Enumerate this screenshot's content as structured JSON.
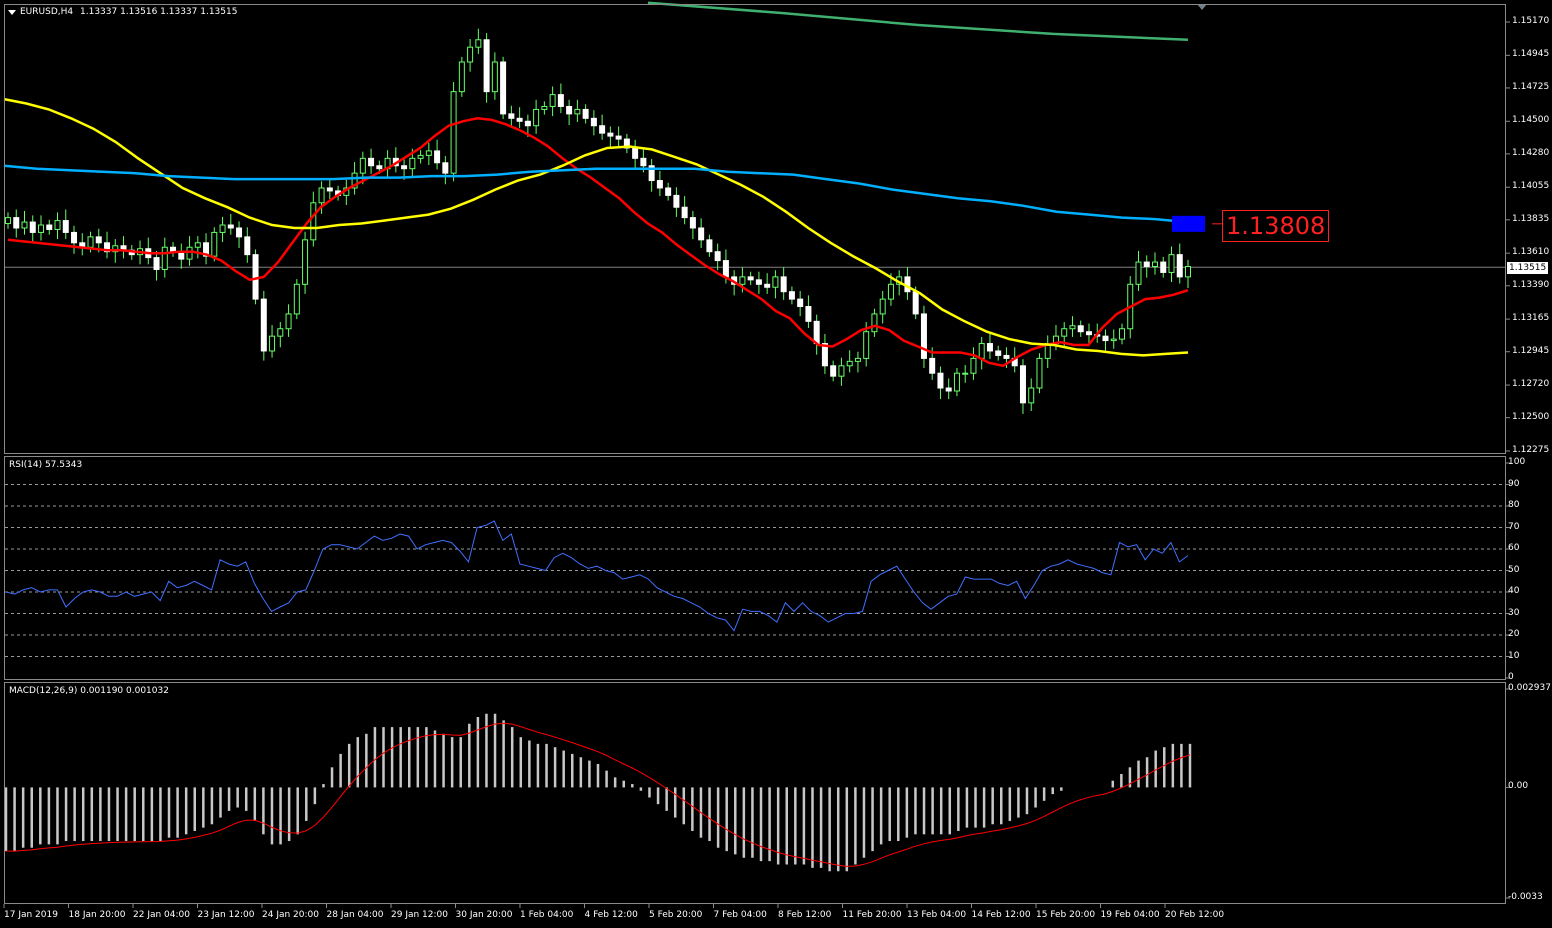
{
  "main": {
    "header_symbol": "EURUSD,H4",
    "header_values": "1.13337 1.13516 1.13337 1.13515",
    "price_ticks": [
      "1.15170",
      "1.14945",
      "1.14725",
      "1.14500",
      "1.14280",
      "1.14055",
      "1.13835",
      "1.13610",
      "1.13390",
      "1.13165",
      "1.12945",
      "1.12720",
      "1.12500",
      "1.12275"
    ],
    "current_price": "1.13515",
    "marker_price": "1.13808",
    "colors": {
      "bull": "#66ff66",
      "bear": "#ffffff",
      "ma_fast": "#ff0000",
      "ma_mid": "#ffff00",
      "ma_slow": "#00b0ff",
      "ma_long": "#40b070",
      "marker": "#0000ff",
      "tag": "#ff2020"
    }
  },
  "rsi": {
    "label": "RSI(14) 57.5343",
    "ticks": [
      "100",
      "90",
      "80",
      "70",
      "60",
      "50",
      "40",
      "30",
      "20",
      "10",
      "0"
    ],
    "line_color": "#4070ff",
    "values": [
      40,
      39,
      41,
      42,
      40,
      41,
      41,
      33,
      37,
      40,
      41,
      40,
      38,
      38,
      40,
      38,
      39,
      40,
      36,
      45,
      42,
      43,
      45,
      43,
      41,
      55,
      53,
      52,
      54,
      44,
      37,
      31,
      33,
      35,
      40,
      41,
      50,
      60,
      62,
      62,
      61,
      60,
      63,
      66,
      64,
      65,
      67,
      66,
      60,
      62,
      63,
      64,
      63,
      59,
      54,
      70,
      71,
      73,
      64,
      67,
      53,
      52,
      51,
      50,
      56,
      58,
      56,
      53,
      51,
      52,
      50,
      49,
      46,
      47,
      48,
      46,
      42,
      40,
      38,
      37,
      35,
      33,
      30,
      28,
      27,
      22,
      32,
      31,
      31,
      29,
      26,
      35,
      31,
      35,
      31,
      29,
      26,
      28,
      30,
      30,
      31,
      45,
      48,
      50,
      52,
      46,
      40,
      35,
      32,
      35,
      38,
      39,
      47,
      46,
      46,
      46,
      44,
      43,
      45,
      37,
      43,
      50,
      52,
      53,
      55,
      53,
      52,
      51,
      49,
      48,
      63,
      61,
      62,
      55,
      60,
      58,
      63,
      54,
      57
    ]
  },
  "macd": {
    "label": "MACD(12,26,9) 0.001190 0.001032",
    "ticks": [
      "0.002937",
      "0.00",
      "-0.0033"
    ],
    "hist_color": "#c8c8c8",
    "signal_color": "#ff0000",
    "histogram": [
      -0.0019,
      -0.0019,
      -0.0018,
      -0.0018,
      -0.0017,
      -0.0017,
      -0.0017,
      -0.0016,
      -0.0016,
      -0.0016,
      -0.0016,
      -0.0016,
      -0.0016,
      -0.0016,
      -0.0016,
      -0.0016,
      -0.0016,
      -0.0016,
      -0.0016,
      -0.0015,
      -0.0015,
      -0.0014,
      -0.0013,
      -0.0012,
      -0.0011,
      -0.0009,
      -0.0007,
      -0.0006,
      -0.0007,
      -0.001,
      -0.0014,
      -0.0017,
      -0.0017,
      -0.0016,
      -0.0014,
      -0.001,
      -0.0005,
      0.0001,
      0.0006,
      0.001,
      0.0013,
      0.0015,
      0.0016,
      0.0018,
      0.0018,
      0.0018,
      0.0018,
      0.0018,
      0.0018,
      0.0018,
      0.0017,
      0.0016,
      0.0015,
      0.0015,
      0.0019,
      0.0021,
      0.0022,
      0.0022,
      0.002,
      0.0018,
      0.0015,
      0.0014,
      0.0013,
      0.0013,
      0.0012,
      0.0011,
      0.001,
      0.0009,
      0.0008,
      0.0007,
      0.0005,
      0.0003,
      0.0002,
      0.0001,
      -0.0001,
      -0.0003,
      -0.0005,
      -0.0007,
      -0.0009,
      -0.0011,
      -0.0013,
      -0.0015,
      -0.0016,
      -0.0018,
      -0.0019,
      -0.002,
      -0.0021,
      -0.0021,
      -0.0022,
      -0.0022,
      -0.0023,
      -0.0023,
      -0.0023,
      -0.0023,
      -0.0024,
      -0.0024,
      -0.0025,
      -0.0025,
      -0.0025,
      -0.0023,
      -0.0021,
      -0.0019,
      -0.0017,
      -0.0016,
      -0.0016,
      -0.0015,
      -0.0014,
      -0.0014,
      -0.0014,
      -0.0014,
      -0.0014,
      -0.0013,
      -0.0012,
      -0.0012,
      -0.0012,
      -0.0011,
      -0.0011,
      -0.001,
      -0.0009,
      -0.0008,
      -0.0006,
      -0.0004,
      -0.0002,
      -0.0001,
      0.0,
      0.0,
      0.0,
      0.0,
      0.0,
      0.0002,
      0.0004,
      0.0006,
      0.0008,
      0.0009,
      0.0011,
      0.0012,
      0.0013,
      0.0013,
      0.0013
    ]
  },
  "time_labels": [
    "17 Jan 2019",
    "18 Jan 20:00",
    "22 Jan 04:00",
    "23 Jan 12:00",
    "24 Jan 20:00",
    "28 Jan 04:00",
    "29 Jan 12:00",
    "30 Jan 20:00",
    "1 Feb 04:00",
    "4 Feb 12:00",
    "5 Feb 20:00",
    "7 Feb 04:00",
    "8 Feb 12:00",
    "11 Feb 20:00",
    "13 Feb 04:00",
    "14 Feb 12:00",
    "15 Feb 20:00",
    "19 Feb 04:00",
    "20 Feb 12:00"
  ],
  "chart_data": {
    "type": "candlestick",
    "title": "EURUSD,H4",
    "symbol": "EURUSD",
    "timeframe": "H4",
    "ylim": [
      1.12275,
      1.1517
    ],
    "last_ohlc": {
      "open": 1.13337,
      "high": 1.13516,
      "low": 1.13337,
      "close": 1.13515
    },
    "close": [
      1.1385,
      1.1378,
      1.1382,
      1.1375,
      1.138,
      1.1377,
      1.1383,
      1.1375,
      1.1368,
      1.1365,
      1.1372,
      1.1368,
      1.1362,
      1.1366,
      1.1363,
      1.136,
      1.1364,
      1.1358,
      1.135,
      1.1365,
      1.1362,
      1.1357,
      1.1365,
      1.1368,
      1.1359,
      1.1375,
      1.138,
      1.1378,
      1.1372,
      1.136,
      1.133,
      1.1295,
      1.1305,
      1.131,
      1.132,
      1.134,
      1.137,
      1.1395,
      1.1405,
      1.1403,
      1.14,
      1.1405,
      1.1415,
      1.1425,
      1.142,
      1.1418,
      1.1425,
      1.142,
      1.1418,
      1.1425,
      1.1427,
      1.143,
      1.1422,
      1.1415,
      1.147,
      1.149,
      1.15,
      1.1505,
      1.147,
      1.149,
      1.1455,
      1.1452,
      1.145,
      1.1447,
      1.1458,
      1.146,
      1.1468,
      1.146,
      1.1455,
      1.1458,
      1.1452,
      1.1447,
      1.1442,
      1.144,
      1.1438,
      1.1432,
      1.1425,
      1.142,
      1.141,
      1.1405,
      1.14,
      1.1392,
      1.1385,
      1.1378,
      1.137,
      1.1362,
      1.1356,
      1.1345,
      1.134,
      1.1345,
      1.1343,
      1.134,
      1.1338,
      1.1345,
      1.1335,
      1.133,
      1.1325,
      1.1315,
      1.13,
      1.1285,
      1.1278,
      1.1285,
      1.1288,
      1.129,
      1.1308,
      1.132,
      1.133,
      1.134,
      1.1345,
      1.1335,
      1.132,
      1.129,
      1.128,
      1.127,
      1.1268,
      1.128,
      1.128,
      1.129,
      1.13,
      1.1295,
      1.1292,
      1.129,
      1.1285,
      1.126,
      1.127,
      1.129,
      1.13,
      1.1305,
      1.131,
      1.1312,
      1.1308,
      1.1306,
      1.1305,
      1.1302,
      1.1303,
      1.131,
      1.134,
      1.1355,
      1.1352,
      1.1355,
      1.1348,
      1.136,
      1.1345,
      1.1352
    ],
    "series": [
      {
        "type": "ma",
        "values": [
          1.137,
          1.1369,
          1.1368,
          1.1367,
          1.1366,
          1.1365,
          1.1364,
          1.1363,
          1.1363,
          1.1362,
          1.1361,
          1.1361,
          1.1362,
          1.1362,
          1.136,
          1.1356,
          1.1349,
          1.1343,
          1.1345,
          1.1355,
          1.1368,
          1.1381,
          1.1392,
          1.1399,
          1.1405,
          1.141,
          1.1415,
          1.142,
          1.1426,
          1.1432,
          1.144,
          1.1447,
          1.145,
          1.1452,
          1.1451,
          1.1448,
          1.1444,
          1.1439,
          1.1433,
          1.1425,
          1.1418,
          1.1412,
          1.1405,
          1.1398,
          1.1389,
          1.1381,
          1.1375,
          1.1367,
          1.136,
          1.1353,
          1.1347,
          1.1342,
          1.1336,
          1.133,
          1.1322,
          1.1317,
          1.1307,
          1.1299,
          1.1298,
          1.1303,
          1.1309,
          1.1312,
          1.1309,
          1.1302,
          1.1298,
          1.1294,
          1.1294,
          1.1294,
          1.1292,
          1.1287,
          1.1285,
          1.1291,
          1.1296,
          1.1299,
          1.1301,
          1.1299,
          1.1299,
          1.1311,
          1.132,
          1.1325,
          1.133,
          1.1331,
          1.1333,
          1.1336
        ]
      },
      {
        "type": "ma",
        "values": [
          1.1465,
          1.1462,
          1.1458,
          1.1452,
          1.1445,
          1.1436,
          1.1425,
          1.1415,
          1.1405,
          1.1398,
          1.1392,
          1.1385,
          1.138,
          1.1378,
          1.1378,
          1.138,
          1.1381,
          1.1383,
          1.1385,
          1.1387,
          1.1391,
          1.1397,
          1.1404,
          1.141,
          1.1414,
          1.142,
          1.1427,
          1.1432,
          1.1433,
          1.1431,
          1.1426,
          1.1421,
          1.1414,
          1.1407,
          1.1399,
          1.1389,
          1.1378,
          1.1368,
          1.1359,
          1.1351,
          1.1342,
          1.1334,
          1.1323,
          1.1315,
          1.1308,
          1.1303,
          1.13,
          1.1299,
          1.1296,
          1.1295,
          1.1293,
          1.1292,
          1.1293,
          1.1294
        ]
      },
      {
        "type": "ma",
        "values": [
          1.142,
          1.1418,
          1.1417,
          1.1416,
          1.1415,
          1.1413,
          1.1412,
          1.1411,
          1.1411,
          1.1411,
          1.1411,
          1.1412,
          1.1412,
          1.1413,
          1.1413,
          1.1414,
          1.1416,
          1.1417,
          1.1418,
          1.1418,
          1.1418,
          1.1418,
          1.1416,
          1.1415,
          1.1414,
          1.1411,
          1.1408,
          1.1404,
          1.1401,
          1.1398,
          1.1396,
          1.1393,
          1.1389,
          1.1387,
          1.1385,
          1.1384,
          1.1382
        ]
      },
      {
        "type": "ma",
        "values": [
          1.153,
          1.1523,
          1.1515,
          1.1509,
          1.1505
        ]
      }
    ]
  }
}
